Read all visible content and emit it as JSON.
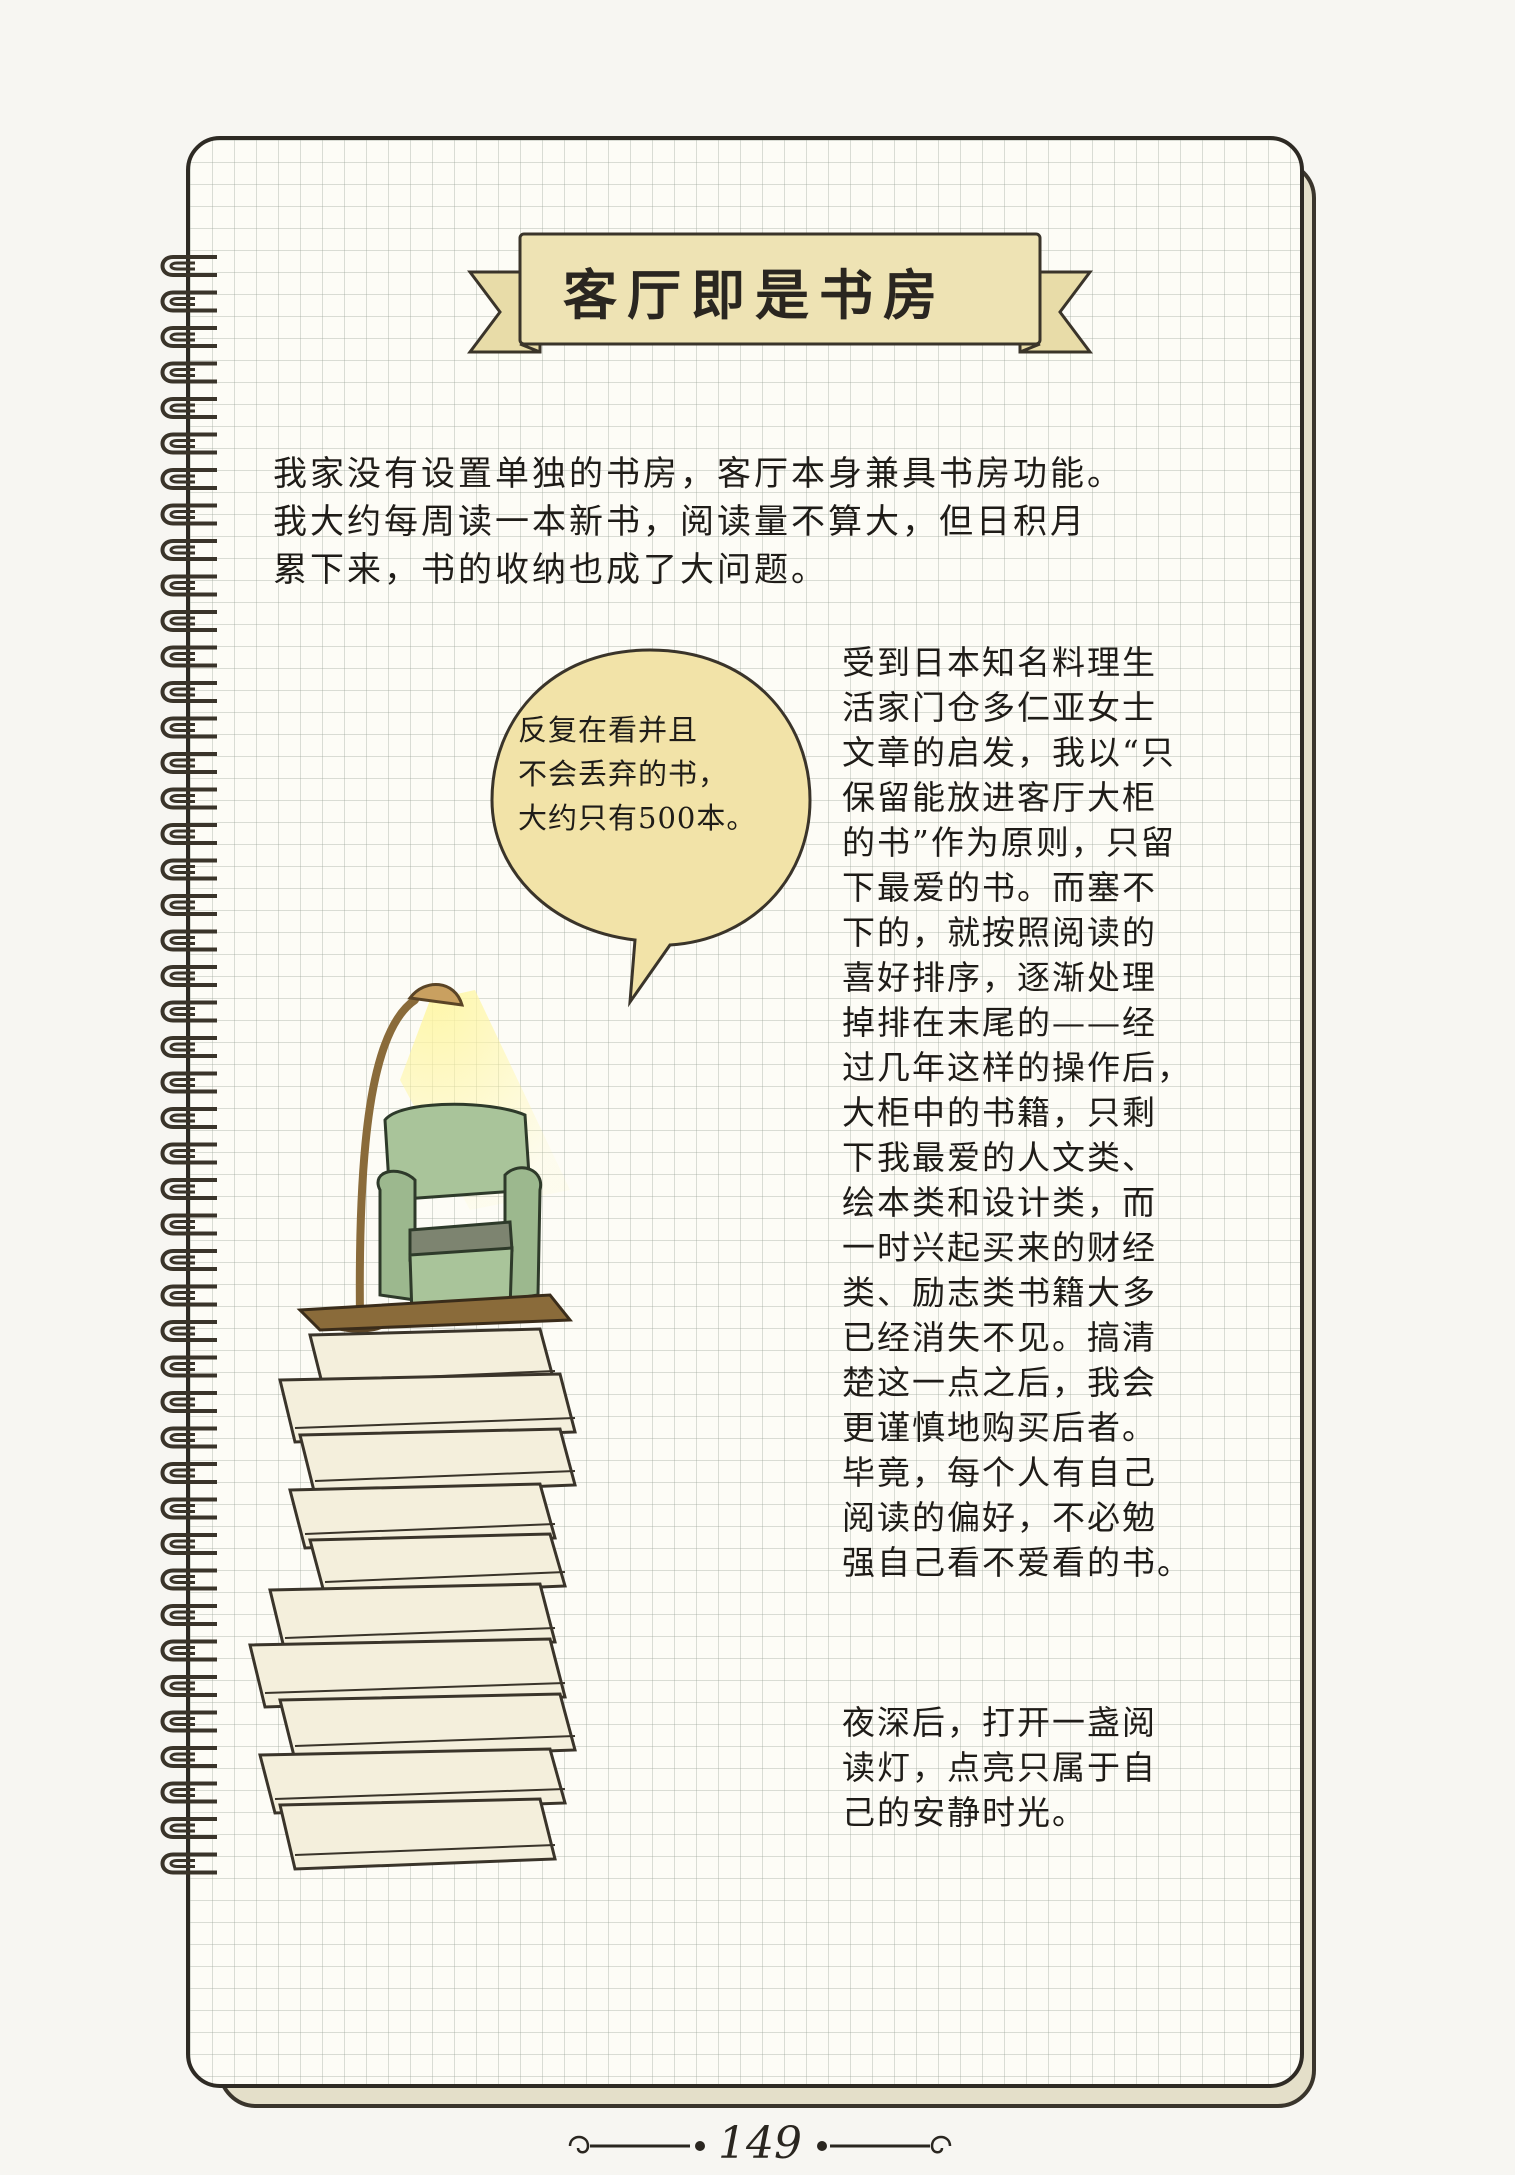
{
  "title": "客厅即是书房",
  "intro_lines": [
    "我家没有设置单独的书房，客厅本身兼具书房功能。",
    "我大约每周读一本新书，阅读量不算大，但日积月",
    "累下来，书的收纳也成了大问题。"
  ],
  "bubble_lines": [
    "反复在看并且",
    "不会丢弃的书，",
    "大约只有500本。"
  ],
  "main_lines": [
    "受到日本知名料理生",
    "活家门仓多仁亚女士",
    "文章的启发，我以“只",
    "保留能放进客厅大柜",
    "的书”作为原则，只留",
    "下最爱的书。而塞不",
    "下的，就按照阅读的",
    "喜好排序，逐渐处理",
    "掉排在末尾的——经",
    "过几年这样的操作后，",
    "大柜中的书籍，只剩",
    "下我最爱的人文类、",
    "绘本类和设计类，而",
    "一时兴起买来的财经",
    "类、励志类书籍大多",
    "已经消失不见。搞清",
    "楚这一点之后，我会",
    "更谨慎地购买后者。",
    "毕竟，每个人有自己",
    "阅读的偏好，不必勉",
    "强自己看不爱看的书。"
  ],
  "closing_lines": [
    "夜深后，打开一盏阅",
    "读灯，点亮只属于自",
    "己的安静时光。"
  ],
  "page_number": "149",
  "colors": {
    "paper": "#fdfcf6",
    "grid": "#a0a898",
    "banner": "#eee3b4",
    "bubble": "#f2e3a8",
    "armchair": "#a9c49a",
    "ink": "#2a2620"
  }
}
